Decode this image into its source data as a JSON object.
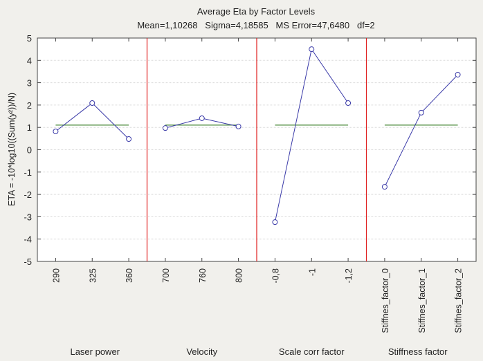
{
  "chart_data": {
    "type": "line",
    "title": "Average Eta by Factor Levels",
    "subtitle": "Mean=1,10268   Sigma=4,18585   MS Error=47,6480   df=2",
    "ylabel": "ETA = -10*log10((Sum(y²))/N)",
    "ylim": [
      -5,
      5
    ],
    "yticks": [
      "5",
      "4",
      "3",
      "2",
      "1",
      "0",
      "-1",
      "-2",
      "-3",
      "-4",
      "-5"
    ],
    "grid": true,
    "mean": 1.10268,
    "groups": [
      {
        "name": "Laser power",
        "levels": [
          "290",
          "325",
          "360"
        ],
        "values": [
          0.82,
          2.09,
          0.48
        ]
      },
      {
        "name": "Velocity",
        "levels": [
          "700",
          "760",
          "800"
        ],
        "values": [
          0.97,
          1.41,
          1.04
        ]
      },
      {
        "name": "Scale corr factor",
        "levels": [
          "-0,8",
          "-1",
          "-1,2"
        ],
        "values": [
          -3.24,
          4.5,
          2.09
        ]
      },
      {
        "name": "Stiffness factor",
        "levels": [
          "Stiffnes_factor_0",
          "Stiffnes_factor_1",
          "Stiffnes_factor_2"
        ],
        "values": [
          -1.66,
          1.66,
          3.36
        ]
      }
    ],
    "colors": {
      "line": "#3a3aa8",
      "mean": "#4a8a3a",
      "separator": "#e02020",
      "grid": "#d8d8d8"
    }
  }
}
